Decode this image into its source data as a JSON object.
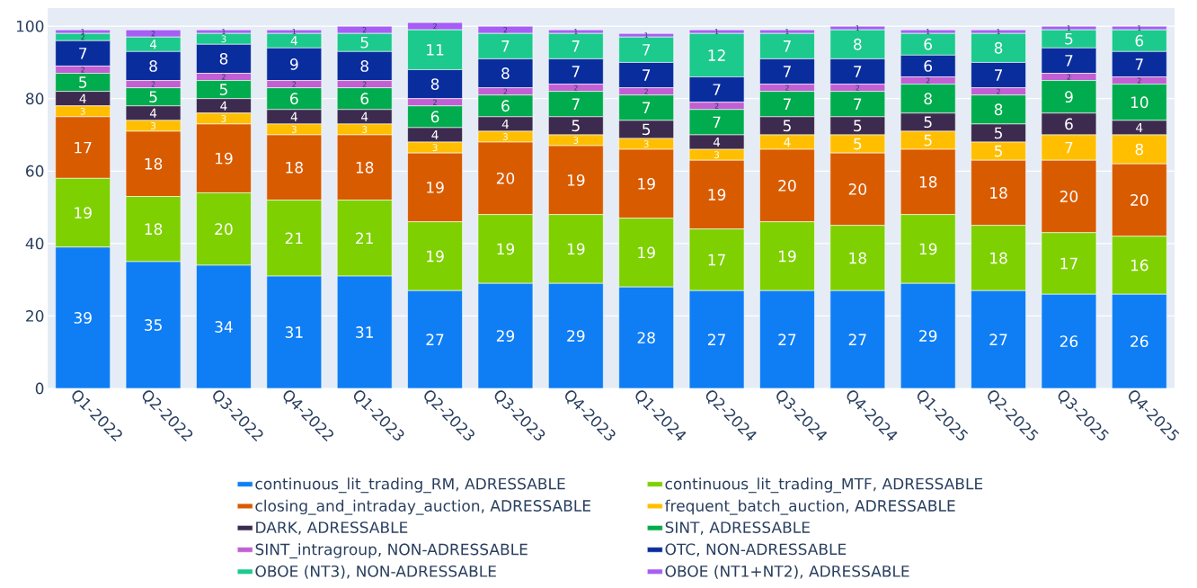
{
  "chart_data": {
    "type": "bar",
    "stacked": true,
    "categories": [
      "Q1-2022",
      "Q2-2022",
      "Q3-2022",
      "Q4-2022",
      "Q1-2023",
      "Q2-2023",
      "Q3-2023",
      "Q4-2023",
      "Q1-2024",
      "Q2-2024",
      "Q3-2024",
      "Q4-2024",
      "Q1-2025",
      "Q2-2025",
      "Q3-2025",
      "Q4-2025"
    ],
    "series": [
      {
        "name": "continuous_lit_trading_RM, ADRESSABLE",
        "color": "#0f7ef5",
        "values": [
          39,
          35,
          34,
          31,
          31,
          27,
          29,
          29,
          28,
          27,
          27,
          27,
          29,
          27,
          26,
          26
        ]
      },
      {
        "name": "continuous_lit_trading_MTF, ADRESSABLE",
        "color": "#7ed000",
        "values": [
          19,
          18,
          20,
          21,
          21,
          19,
          19,
          19,
          19,
          17,
          19,
          18,
          19,
          18,
          17,
          16
        ]
      },
      {
        "name": "closing_and_intraday_auction, ADRESSABLE",
        "color": "#d95b00",
        "values": [
          17,
          18,
          19,
          18,
          18,
          19,
          20,
          19,
          19,
          19,
          20,
          20,
          18,
          18,
          20,
          20
        ]
      },
      {
        "name": "frequent_batch_auction, ADRESSABLE",
        "color": "#ffbf00",
        "values": [
          3,
          3,
          3,
          3,
          3,
          3,
          3,
          3,
          3,
          3,
          4,
          5,
          5,
          5,
          7,
          8
        ]
      },
      {
        "name": "DARK, ADRESSABLE",
        "color": "#3d2b4f",
        "values": [
          4,
          4,
          4,
          4,
          4,
          4,
          4,
          5,
          5,
          4,
          5,
          5,
          5,
          5,
          6,
          4
        ]
      },
      {
        "name": "SINT, ADRESSABLE",
        "color": "#00ac4d",
        "values": [
          5,
          5,
          5,
          6,
          6,
          6,
          6,
          7,
          7,
          7,
          7,
          7,
          8,
          8,
          9,
          10
        ]
      },
      {
        "name": "SINT_intragroup, NON-ADRESSABLE",
        "color": "#c25fd4",
        "values": [
          2,
          2,
          2,
          2,
          2,
          2,
          2,
          2,
          2,
          2,
          2,
          2,
          2,
          2,
          2,
          2
        ]
      },
      {
        "name": "OTC, NON-ADRESSABLE",
        "color": "#0a2d9e",
        "values": [
          7,
          8,
          8,
          9,
          8,
          8,
          8,
          7,
          7,
          7,
          7,
          7,
          6,
          7,
          7,
          7
        ]
      },
      {
        "name": "OBOE (NT3), NON-ADRESSABLE",
        "color": "#1bca8c",
        "values": [
          2,
          4,
          3,
          4,
          5,
          11,
          7,
          7,
          7,
          12,
          7,
          8,
          6,
          8,
          5,
          6
        ]
      },
      {
        "name": "OBOE (NT1+NT2), ADRESSABLE",
        "color": "#a65ef5",
        "values": [
          1,
          2,
          1,
          1,
          2,
          2,
          2,
          1,
          1,
          1,
          1,
          1,
          1,
          1,
          1,
          1
        ]
      }
    ],
    "ylim": [
      0,
      105
    ],
    "yticks": [
      0,
      20,
      40,
      60,
      80,
      100
    ],
    "grid": "y",
    "legend": "bottom",
    "data_labels": true
  }
}
